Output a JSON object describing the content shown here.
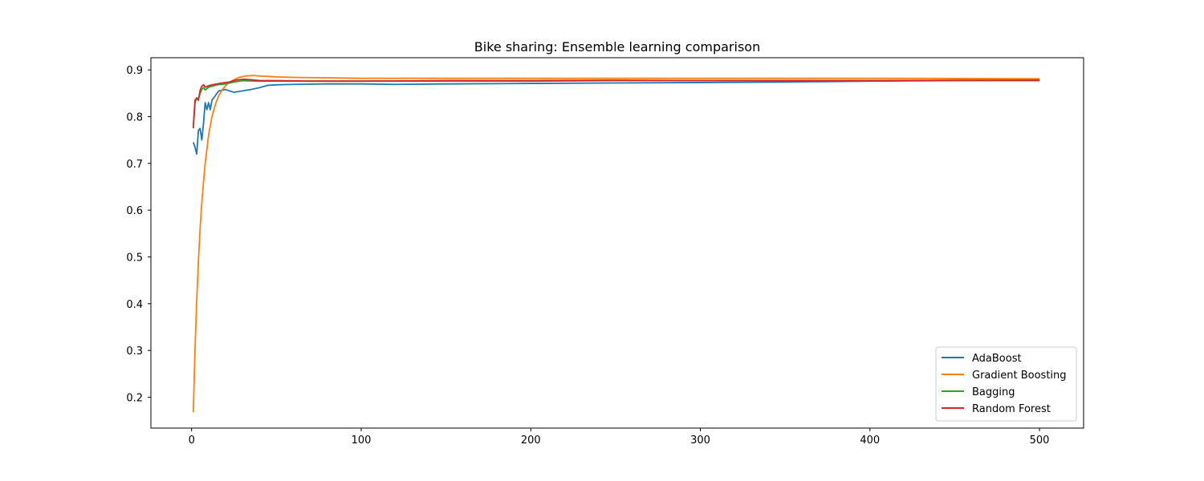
{
  "chart_data": {
    "type": "line",
    "title": "Bike sharing: Ensemble learning comparison",
    "xlabel": "",
    "ylabel": "",
    "xlim": [
      -24,
      526
    ],
    "ylim": [
      0.134,
      0.926
    ],
    "xticks": [
      0,
      100,
      200,
      300,
      400,
      500
    ],
    "yticks": [
      0.2,
      0.3,
      0.4,
      0.5,
      0.6,
      0.7,
      0.8,
      0.9
    ],
    "grid": false,
    "legend_position": "lower-right",
    "series": [
      {
        "name": "AdaBoost",
        "color": "#1f77b4",
        "points": [
          [
            1,
            0.745
          ],
          [
            2,
            0.735
          ],
          [
            3,
            0.72
          ],
          [
            4,
            0.77
          ],
          [
            5,
            0.775
          ],
          [
            6,
            0.75
          ],
          [
            7,
            0.785
          ],
          [
            8,
            0.83
          ],
          [
            9,
            0.815
          ],
          [
            10,
            0.83
          ],
          [
            11,
            0.815
          ],
          [
            12,
            0.835
          ],
          [
            14,
            0.845
          ],
          [
            16,
            0.855
          ],
          [
            20,
            0.858
          ],
          [
            25,
            0.852
          ],
          [
            30,
            0.855
          ],
          [
            35,
            0.858
          ],
          [
            40,
            0.862
          ],
          [
            45,
            0.867
          ],
          [
            50,
            0.868
          ],
          [
            60,
            0.869
          ],
          [
            80,
            0.87
          ],
          [
            100,
            0.87
          ],
          [
            120,
            0.869
          ],
          [
            150,
            0.87
          ],
          [
            200,
            0.871
          ],
          [
            250,
            0.872
          ],
          [
            300,
            0.873
          ],
          [
            350,
            0.874
          ],
          [
            400,
            0.876
          ],
          [
            450,
            0.877
          ],
          [
            500,
            0.878
          ]
        ]
      },
      {
        "name": "Gradient Boosting",
        "color": "#ff7f0e",
        "points": [
          [
            1,
            0.168
          ],
          [
            2,
            0.3
          ],
          [
            3,
            0.405
          ],
          [
            4,
            0.49
          ],
          [
            5,
            0.56
          ],
          [
            6,
            0.615
          ],
          [
            7,
            0.66
          ],
          [
            8,
            0.7
          ],
          [
            9,
            0.73
          ],
          [
            10,
            0.76
          ],
          [
            12,
            0.8
          ],
          [
            14,
            0.826
          ],
          [
            16,
            0.845
          ],
          [
            18,
            0.857
          ],
          [
            20,
            0.866
          ],
          [
            22,
            0.873
          ],
          [
            25,
            0.879
          ],
          [
            28,
            0.884
          ],
          [
            32,
            0.887
          ],
          [
            36,
            0.888
          ],
          [
            40,
            0.887
          ],
          [
            50,
            0.885
          ],
          [
            60,
            0.884
          ],
          [
            80,
            0.883
          ],
          [
            100,
            0.882
          ],
          [
            150,
            0.882
          ],
          [
            200,
            0.882
          ],
          [
            300,
            0.882
          ],
          [
            400,
            0.882
          ],
          [
            500,
            0.881
          ]
        ]
      },
      {
        "name": "Bagging",
        "color": "#2ca02c",
        "points": [
          [
            1,
            0.78
          ],
          [
            2,
            0.83
          ],
          [
            3,
            0.84
          ],
          [
            4,
            0.838
          ],
          [
            5,
            0.85
          ],
          [
            6,
            0.858
          ],
          [
            7,
            0.862
          ],
          [
            8,
            0.857
          ],
          [
            10,
            0.863
          ],
          [
            12,
            0.865
          ],
          [
            15,
            0.868
          ],
          [
            20,
            0.87
          ],
          [
            25,
            0.874
          ],
          [
            30,
            0.877
          ],
          [
            40,
            0.876
          ],
          [
            50,
            0.876
          ],
          [
            70,
            0.876
          ],
          [
            100,
            0.876
          ],
          [
            150,
            0.876
          ],
          [
            200,
            0.876
          ],
          [
            250,
            0.877
          ],
          [
            300,
            0.877
          ],
          [
            350,
            0.877
          ],
          [
            400,
            0.877
          ],
          [
            450,
            0.877
          ],
          [
            500,
            0.877
          ]
        ]
      },
      {
        "name": "Random Forest",
        "color": "#d62728",
        "points": [
          [
            1,
            0.775
          ],
          [
            2,
            0.835
          ],
          [
            3,
            0.84
          ],
          [
            4,
            0.835
          ],
          [
            5,
            0.856
          ],
          [
            6,
            0.865
          ],
          [
            7,
            0.868
          ],
          [
            8,
            0.863
          ],
          [
            10,
            0.866
          ],
          [
            12,
            0.868
          ],
          [
            15,
            0.87
          ],
          [
            18,
            0.872
          ],
          [
            22,
            0.874
          ],
          [
            26,
            0.878
          ],
          [
            30,
            0.88
          ],
          [
            35,
            0.879
          ],
          [
            40,
            0.877
          ],
          [
            50,
            0.877
          ],
          [
            70,
            0.876
          ],
          [
            100,
            0.876
          ],
          [
            150,
            0.877
          ],
          [
            200,
            0.877
          ],
          [
            250,
            0.878
          ],
          [
            300,
            0.877
          ],
          [
            350,
            0.877
          ],
          [
            400,
            0.877
          ],
          [
            450,
            0.878
          ],
          [
            500,
            0.878
          ]
        ]
      }
    ]
  }
}
